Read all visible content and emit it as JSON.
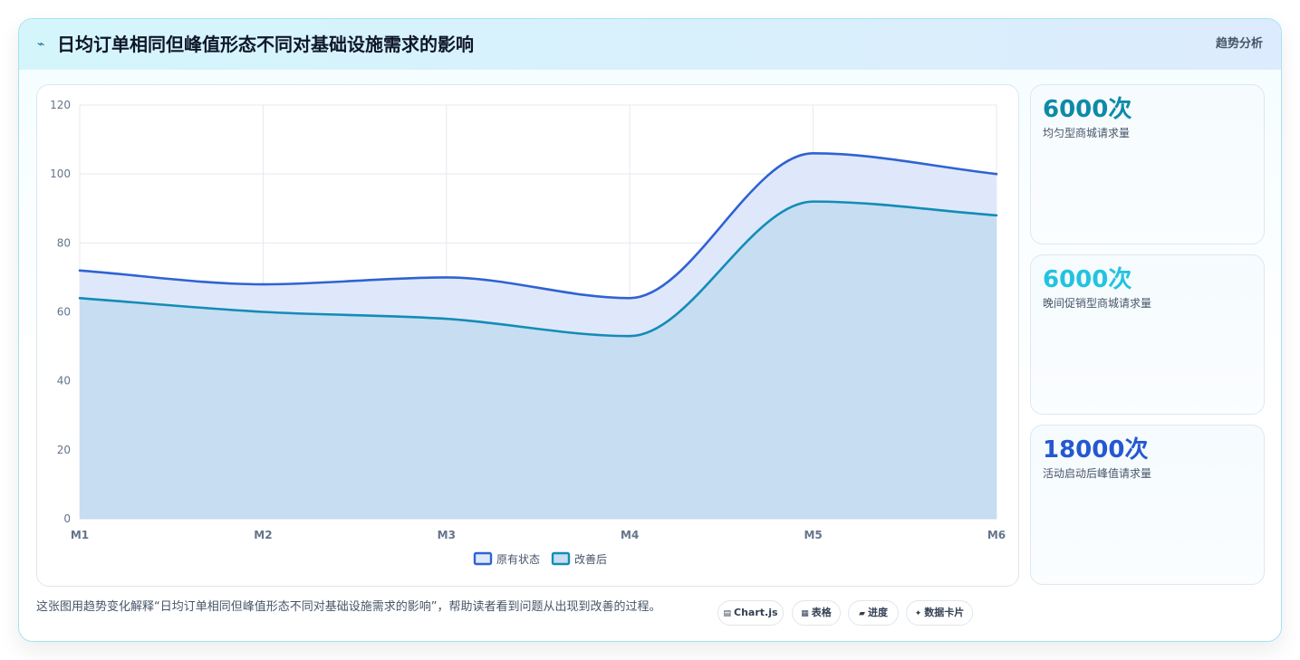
{
  "header": {
    "icon": "⌁",
    "title": "日均订单相同但峰值形态不同对基础设施需求的影响",
    "tag": "趋势分析"
  },
  "chart_data": {
    "type": "area",
    "categories": [
      "M1",
      "M2",
      "M3",
      "M4",
      "M5",
      "M6"
    ],
    "series": [
      {
        "name": "原有状态",
        "values": [
          72,
          68,
          70,
          64,
          106,
          100
        ],
        "color": "#2f63d3",
        "fill": "#dfe8fb"
      },
      {
        "name": "改善后",
        "values": [
          64,
          60,
          58,
          53,
          92,
          88
        ],
        "color": "#138cb6",
        "fill": "#c6ddf2"
      }
    ],
    "ylim": [
      0,
      120
    ],
    "yticks": [
      0,
      20,
      40,
      60,
      80,
      100,
      120
    ],
    "grid": true,
    "legend": "bottom"
  },
  "stats": [
    {
      "value": "6000次",
      "label": "均匀型商城请求量",
      "color": "#0e8aa8"
    },
    {
      "value": "6000次",
      "label": "晚间促销型商城请求量",
      "color": "#22c3e0"
    },
    {
      "value": "18000次",
      "label": "活动启动后峰值请求量",
      "color": "#2558d0"
    }
  ],
  "caption": "这张图用趋势变化解释“日均订单相同但峰值形态不同对基础设施需求的影响”，帮助读者看到问题从出现到改善的过程。",
  "pills": [
    {
      "icon": "▤",
      "label": "Chart.js",
      "icon_name": "chart-icon"
    },
    {
      "icon": "▦",
      "label": "表格",
      "icon_name": "table-icon"
    },
    {
      "icon": "▰",
      "label": "进度",
      "icon_name": "progress-icon"
    },
    {
      "icon": "✦",
      "label": "数据卡片",
      "icon_name": "sparkle-icon"
    }
  ]
}
